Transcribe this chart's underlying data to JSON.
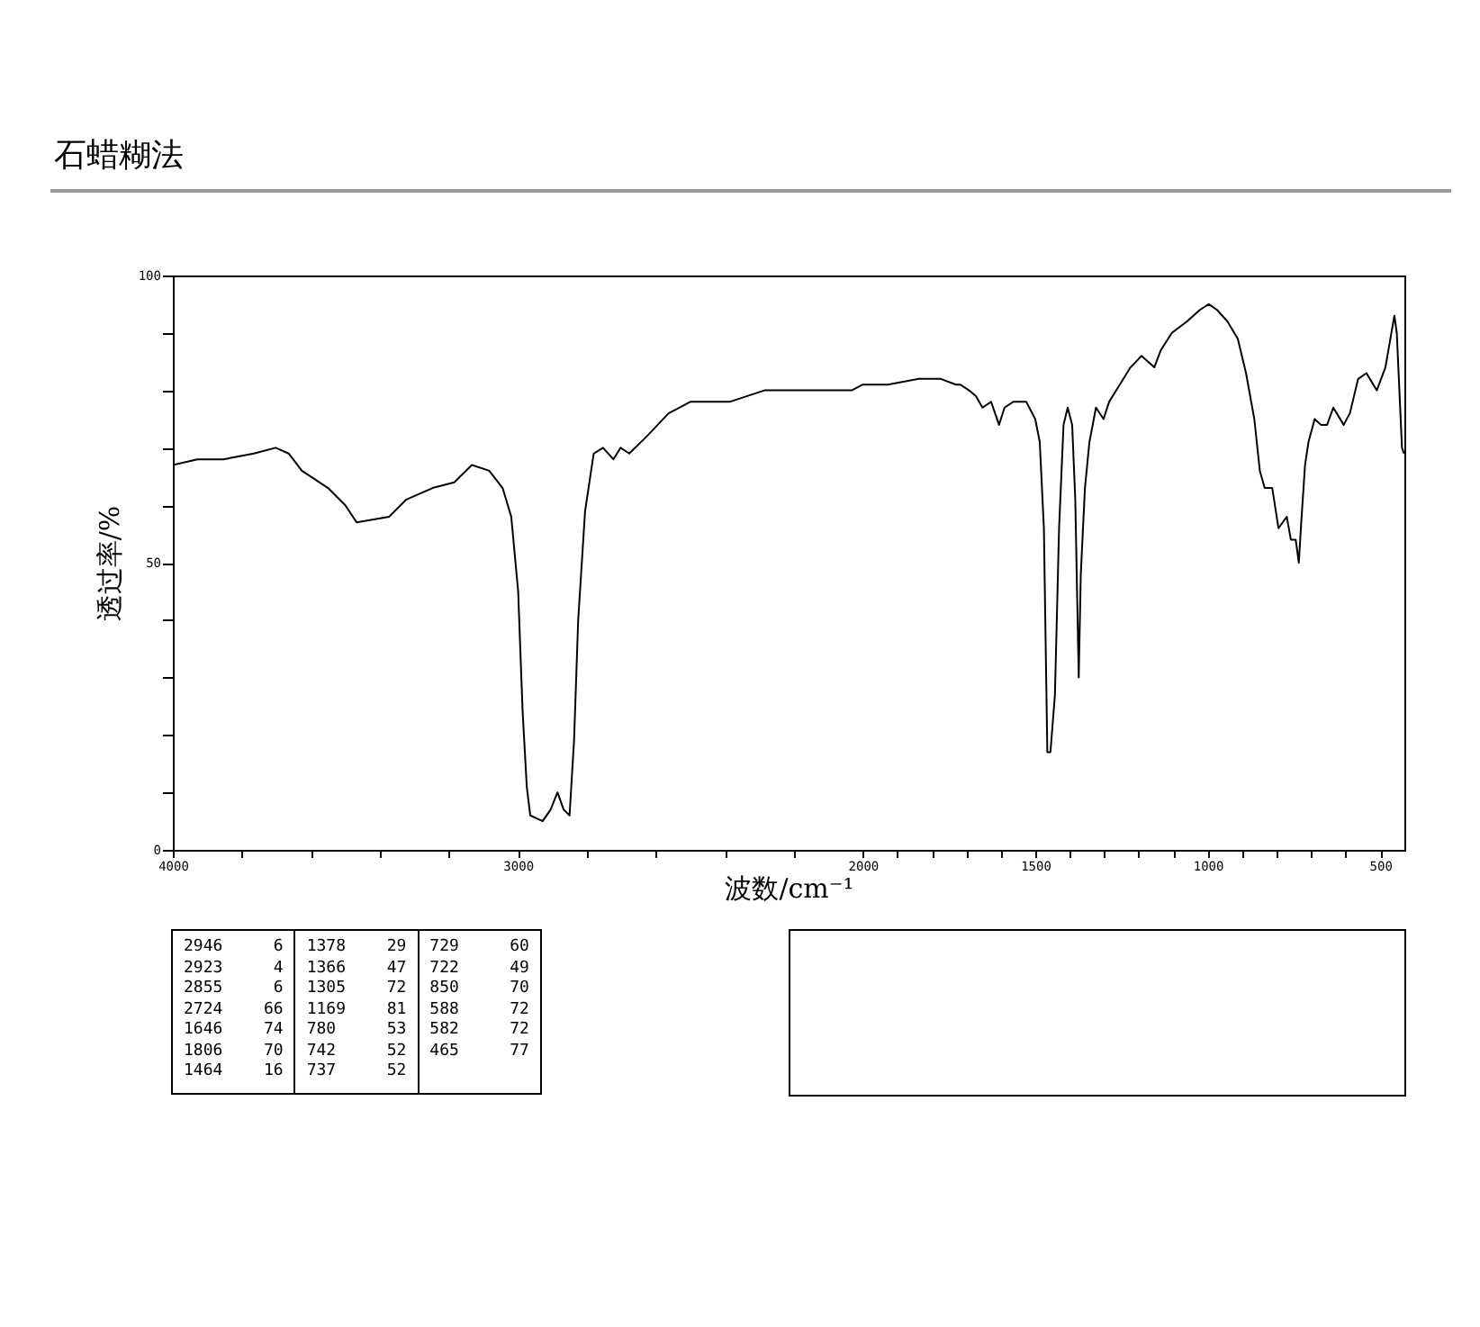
{
  "chart_data": {
    "type": "line",
    "title": "石蜡糊法",
    "xlabel": "波数/cm⁻¹",
    "ylabel": "透过率/%",
    "xlim": [
      4000,
      430
    ],
    "ylim": [
      0,
      100
    ],
    "xticks": [
      4000,
      {
        "value": 3800,
        "label": null
      },
      {
        "value": 3600,
        "label": null
      },
      {
        "value": 3400,
        "label": null
      },
      {
        "value": 3200,
        "label": null
      },
      3000,
      {
        "value": 2800,
        "label": null
      },
      {
        "value": 2600,
        "label": null
      },
      {
        "value": 2400,
        "label": null
      },
      {
        "value": 2200,
        "label": null
      },
      2000,
      {
        "value": 1900,
        "label": null
      },
      {
        "value": 1800,
        "label": null
      },
      {
        "value": 1700,
        "label": null
      },
      {
        "value": 1600,
        "label": null
      },
      1500,
      {
        "value": 1400,
        "label": null
      },
      {
        "value": 1300,
        "label": null
      },
      {
        "value": 1200,
        "label": null
      },
      {
        "value": 1100,
        "label": null
      },
      1000,
      {
        "value": 900,
        "label": null
      },
      {
        "value": 800,
        "label": null
      },
      {
        "value": 700,
        "label": null
      },
      {
        "value": 600,
        "label": null
      },
      500
    ],
    "yticks": [
      0,
      {
        "value": 10,
        "label": null
      },
      {
        "value": 20,
        "label": null
      },
      {
        "value": 30,
        "label": null
      },
      {
        "value": 40,
        "label": null
      },
      50,
      {
        "value": 60,
        "label": null
      },
      {
        "value": 70,
        "label": null
      },
      {
        "value": 80,
        "label": null
      },
      {
        "value": 90,
        "label": null
      },
      100
    ],
    "grid": false,
    "marker": "none",
    "line_style": "solid",
    "series": [
      {
        "color": "#000000",
        "x": [
          4000,
          3929,
          3853,
          3765,
          3702,
          3664,
          3626,
          3550,
          3500,
          3467,
          3373,
          3323,
          3247,
          3184,
          3133,
          3083,
          3044,
          3019,
          2999,
          2986,
          2974,
          2964,
          2928,
          2905,
          2885,
          2867,
          2850,
          2837,
          2825,
          2805,
          2780,
          2753,
          2723,
          2702,
          2677,
          2626,
          2563,
          2500,
          2386,
          2285,
          2159,
          2032,
          2000,
          1927,
          1838,
          1774,
          1730,
          1717,
          1692,
          1672,
          1653,
          1628,
          1605,
          1589,
          1564,
          1526,
          1500,
          1487,
          1475,
          1465,
          1456,
          1443,
          1431,
          1418,
          1406,
          1393,
          1384,
          1374,
          1368,
          1356,
          1343,
          1324,
          1302,
          1286,
          1255,
          1224,
          1192,
          1173,
          1155,
          1136,
          1104,
          1060,
          1023,
          997,
          973,
          943,
          913,
          889,
          865,
          849,
          835,
          813,
          795,
          771,
          759,
          745,
          736,
          729,
          718,
          708,
          690,
          672,
          654,
          636,
          606,
          588,
          564,
          540,
          510,
          485,
          459,
          452,
          437,
          431
        ],
        "values": [
          67,
          68,
          68,
          69,
          70,
          69,
          66,
          63,
          60,
          57,
          58,
          61,
          63,
          64,
          67,
          66,
          63,
          58,
          45,
          24,
          11,
          6,
          5,
          7,
          10,
          7,
          6,
          19,
          40,
          59,
          69,
          70,
          68,
          70,
          69,
          72,
          76,
          78,
          78,
          80,
          80,
          80,
          81,
          81,
          82,
          82,
          81,
          81,
          80,
          79,
          77,
          78,
          74,
          77,
          78,
          78,
          75,
          71,
          56,
          17,
          17,
          27,
          56,
          74,
          77,
          74,
          61,
          30,
          48,
          63,
          71,
          77,
          75,
          78,
          81,
          84,
          86,
          85,
          84,
          87,
          90,
          92,
          94,
          95,
          94,
          92,
          89,
          83,
          75,
          66,
          63,
          63,
          56,
          58,
          54,
          54,
          50,
          57,
          67,
          71,
          75,
          74,
          74,
          77,
          74,
          76,
          82,
          83,
          80,
          84,
          93,
          90,
          70,
          69
        ]
      }
    ],
    "annotations": [
      "2946 6",
      "2923 4",
      "2855 6",
      "2724 66",
      "1646 74",
      "1806 70",
      "1464 16",
      "1378 29",
      "1366 47",
      "1305 72",
      "1169 81",
      "780 53",
      "742 52",
      "737 52",
      "729 60",
      "722 49",
      "850 70",
      "588 72",
      "582 72",
      "465 77"
    ]
  }
}
